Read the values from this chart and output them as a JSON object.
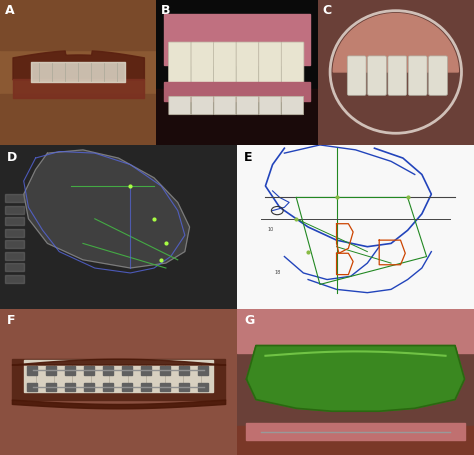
{
  "panels": [
    "A",
    "B",
    "C",
    "D",
    "E",
    "F",
    "G"
  ],
  "panel_positions": {
    "A": [
      0.0,
      0.68,
      0.33,
      0.32
    ],
    "B": [
      0.33,
      0.68,
      0.34,
      0.32
    ],
    "C": [
      0.67,
      0.68,
      0.33,
      0.32
    ],
    "D": [
      0.0,
      0.32,
      0.5,
      0.36
    ],
    "E": [
      0.5,
      0.32,
      0.5,
      0.36
    ],
    "F": [
      0.0,
      0.0,
      0.5,
      0.32
    ],
    "G": [
      0.5,
      0.0,
      0.5,
      0.32
    ]
  },
  "label_color_light": "white",
  "label_color_dark": "black",
  "figure_bg": "#ffffff",
  "label_fontsize": 9,
  "label_fontweight": "bold"
}
